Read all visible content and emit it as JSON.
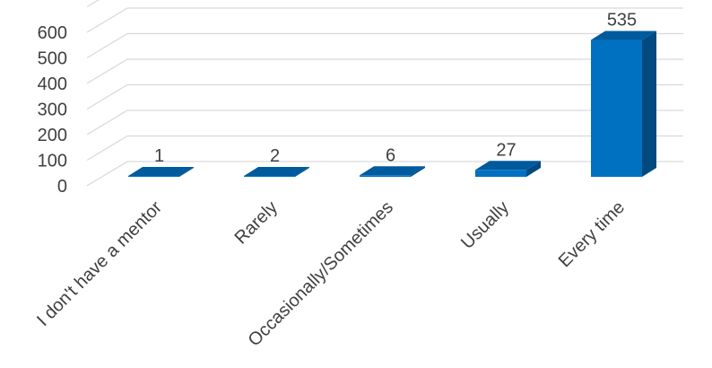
{
  "chart_data": {
    "type": "bar",
    "style": "3d-column",
    "categories": [
      "I don't have a mentor",
      "Rarely",
      "Occasionally/Sometimes",
      "Usually",
      "Every time"
    ],
    "values": [
      1,
      2,
      6,
      27,
      535
    ],
    "data_labels": [
      "1",
      "2",
      "6",
      "27",
      "535"
    ],
    "y_ticks": [
      "0",
      "100",
      "200",
      "300",
      "400",
      "500",
      "600"
    ],
    "ylim": [
      0,
      700
    ],
    "grid": true,
    "legend": "none",
    "title": "",
    "xlabel": "",
    "ylabel": "",
    "colors": {
      "front": "#0070c0",
      "side": "#004a80",
      "top": "#005a9e",
      "grid": "#d9d9d9",
      "text": "#404040"
    }
  }
}
